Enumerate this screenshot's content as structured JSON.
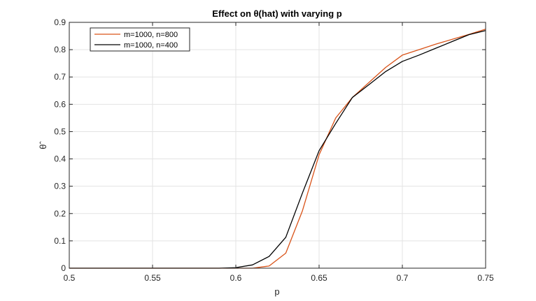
{
  "chart_data": {
    "type": "line",
    "title": "Effect on θ(hat) with varying p",
    "xlabel": "p",
    "ylabel": "θˆ",
    "xlim": [
      0.5,
      0.75
    ],
    "ylim": [
      0,
      0.9
    ],
    "xticks": [
      "0.5",
      "0.55",
      "0.6",
      "0.65",
      "0.7",
      "0.75"
    ],
    "yticks": [
      "0",
      "0.1",
      "0.2",
      "0.3",
      "0.4",
      "0.5",
      "0.6",
      "0.7",
      "0.8",
      "0.9"
    ],
    "grid": true,
    "legend_position": "top-left",
    "x": [
      0.5,
      0.51,
      0.52,
      0.53,
      0.54,
      0.55,
      0.56,
      0.57,
      0.58,
      0.59,
      0.6,
      0.61,
      0.62,
      0.63,
      0.64,
      0.65,
      0.66,
      0.67,
      0.68,
      0.69,
      0.7,
      0.71,
      0.72,
      0.73,
      0.74,
      0.75
    ],
    "series": [
      {
        "name": "m=1000, n=800",
        "color": "#d95319",
        "values": [
          0,
          0,
          0,
          0,
          0,
          0,
          0,
          0,
          0,
          0,
          0,
          0,
          0.008,
          0.055,
          0.21,
          0.415,
          0.55,
          0.625,
          0.68,
          0.735,
          0.78,
          0.8,
          0.82,
          0.838,
          0.856,
          0.875
        ]
      },
      {
        "name": "m=1000, n=400",
        "color": "#000000",
        "values": [
          0,
          0,
          0,
          0,
          0,
          0,
          0,
          0,
          0,
          0,
          0.002,
          0.012,
          0.043,
          0.113,
          0.275,
          0.43,
          0.53,
          0.625,
          0.672,
          0.72,
          0.757,
          0.78,
          0.805,
          0.83,
          0.855,
          0.87
        ]
      }
    ]
  }
}
